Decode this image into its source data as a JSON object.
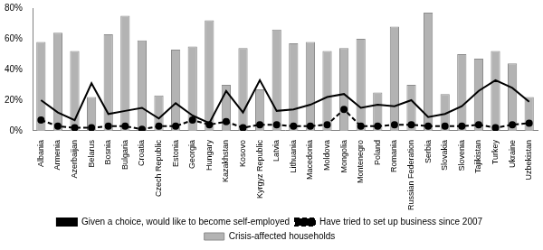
{
  "chart_data": {
    "type": "bar",
    "categories": [
      "Albania",
      "Armenia",
      "Azerbaijan",
      "Belarus",
      "Bosnia",
      "Bulgaria",
      "Croatia",
      "Czech Republic",
      "Estonia",
      "Georgia",
      "Hungary",
      "Kazakhstan",
      "Kosovo",
      "Kyrgyz Republic",
      "Latvia",
      "Lithuania",
      "Macedonia",
      "Moldova",
      "Mongolia",
      "Montenegro",
      "Poland",
      "Romania",
      "Russian Federation",
      "Serbia",
      "Slovakia",
      "Slovenia",
      "Tajikistan",
      "Turkey",
      "Ukraine",
      "Uzbekistan"
    ],
    "series": [
      {
        "name": "Crisis-affected households",
        "type": "bar",
        "color": "#b3b3b3",
        "values": [
          58,
          64,
          52,
          22,
          63,
          75,
          59,
          23,
          53,
          55,
          72,
          30,
          54,
          27,
          66,
          57,
          58,
          52,
          54,
          60,
          25,
          68,
          30,
          77,
          24,
          50,
          47,
          52,
          44,
          22
        ]
      },
      {
        "name": "Given a choice, would like to become self-employed",
        "type": "line",
        "color": "#000000",
        "line_style": "solid",
        "marker": "none",
        "values": [
          20,
          12,
          7,
          31,
          11,
          13,
          15,
          8,
          18,
          10,
          5,
          26,
          12,
          33,
          13,
          14,
          17,
          22,
          24,
          15,
          17,
          16,
          20,
          9,
          11,
          16,
          26,
          33,
          28,
          19
        ]
      },
      {
        "name": "Have tried to set up business since 2007",
        "type": "line",
        "color": "#000000",
        "line_style": "dashed",
        "marker": "circle",
        "values": [
          7,
          3,
          2,
          2,
          3,
          3,
          1,
          3,
          3,
          7,
          4,
          6,
          2,
          4,
          4,
          3,
          3,
          4,
          14,
          3,
          3,
          4,
          4,
          3,
          3,
          3,
          4,
          2,
          4,
          5
        ]
      }
    ],
    "ylim": [
      0,
      80
    ],
    "yticks": [
      {
        "value": 0,
        "label": "0%"
      },
      {
        "value": 20,
        "label": "20%"
      },
      {
        "value": 40,
        "label": "40%"
      },
      {
        "value": 60,
        "label": "60%"
      },
      {
        "value": 80,
        "label": "80%"
      }
    ],
    "grid": false,
    "legend": "bottom"
  }
}
